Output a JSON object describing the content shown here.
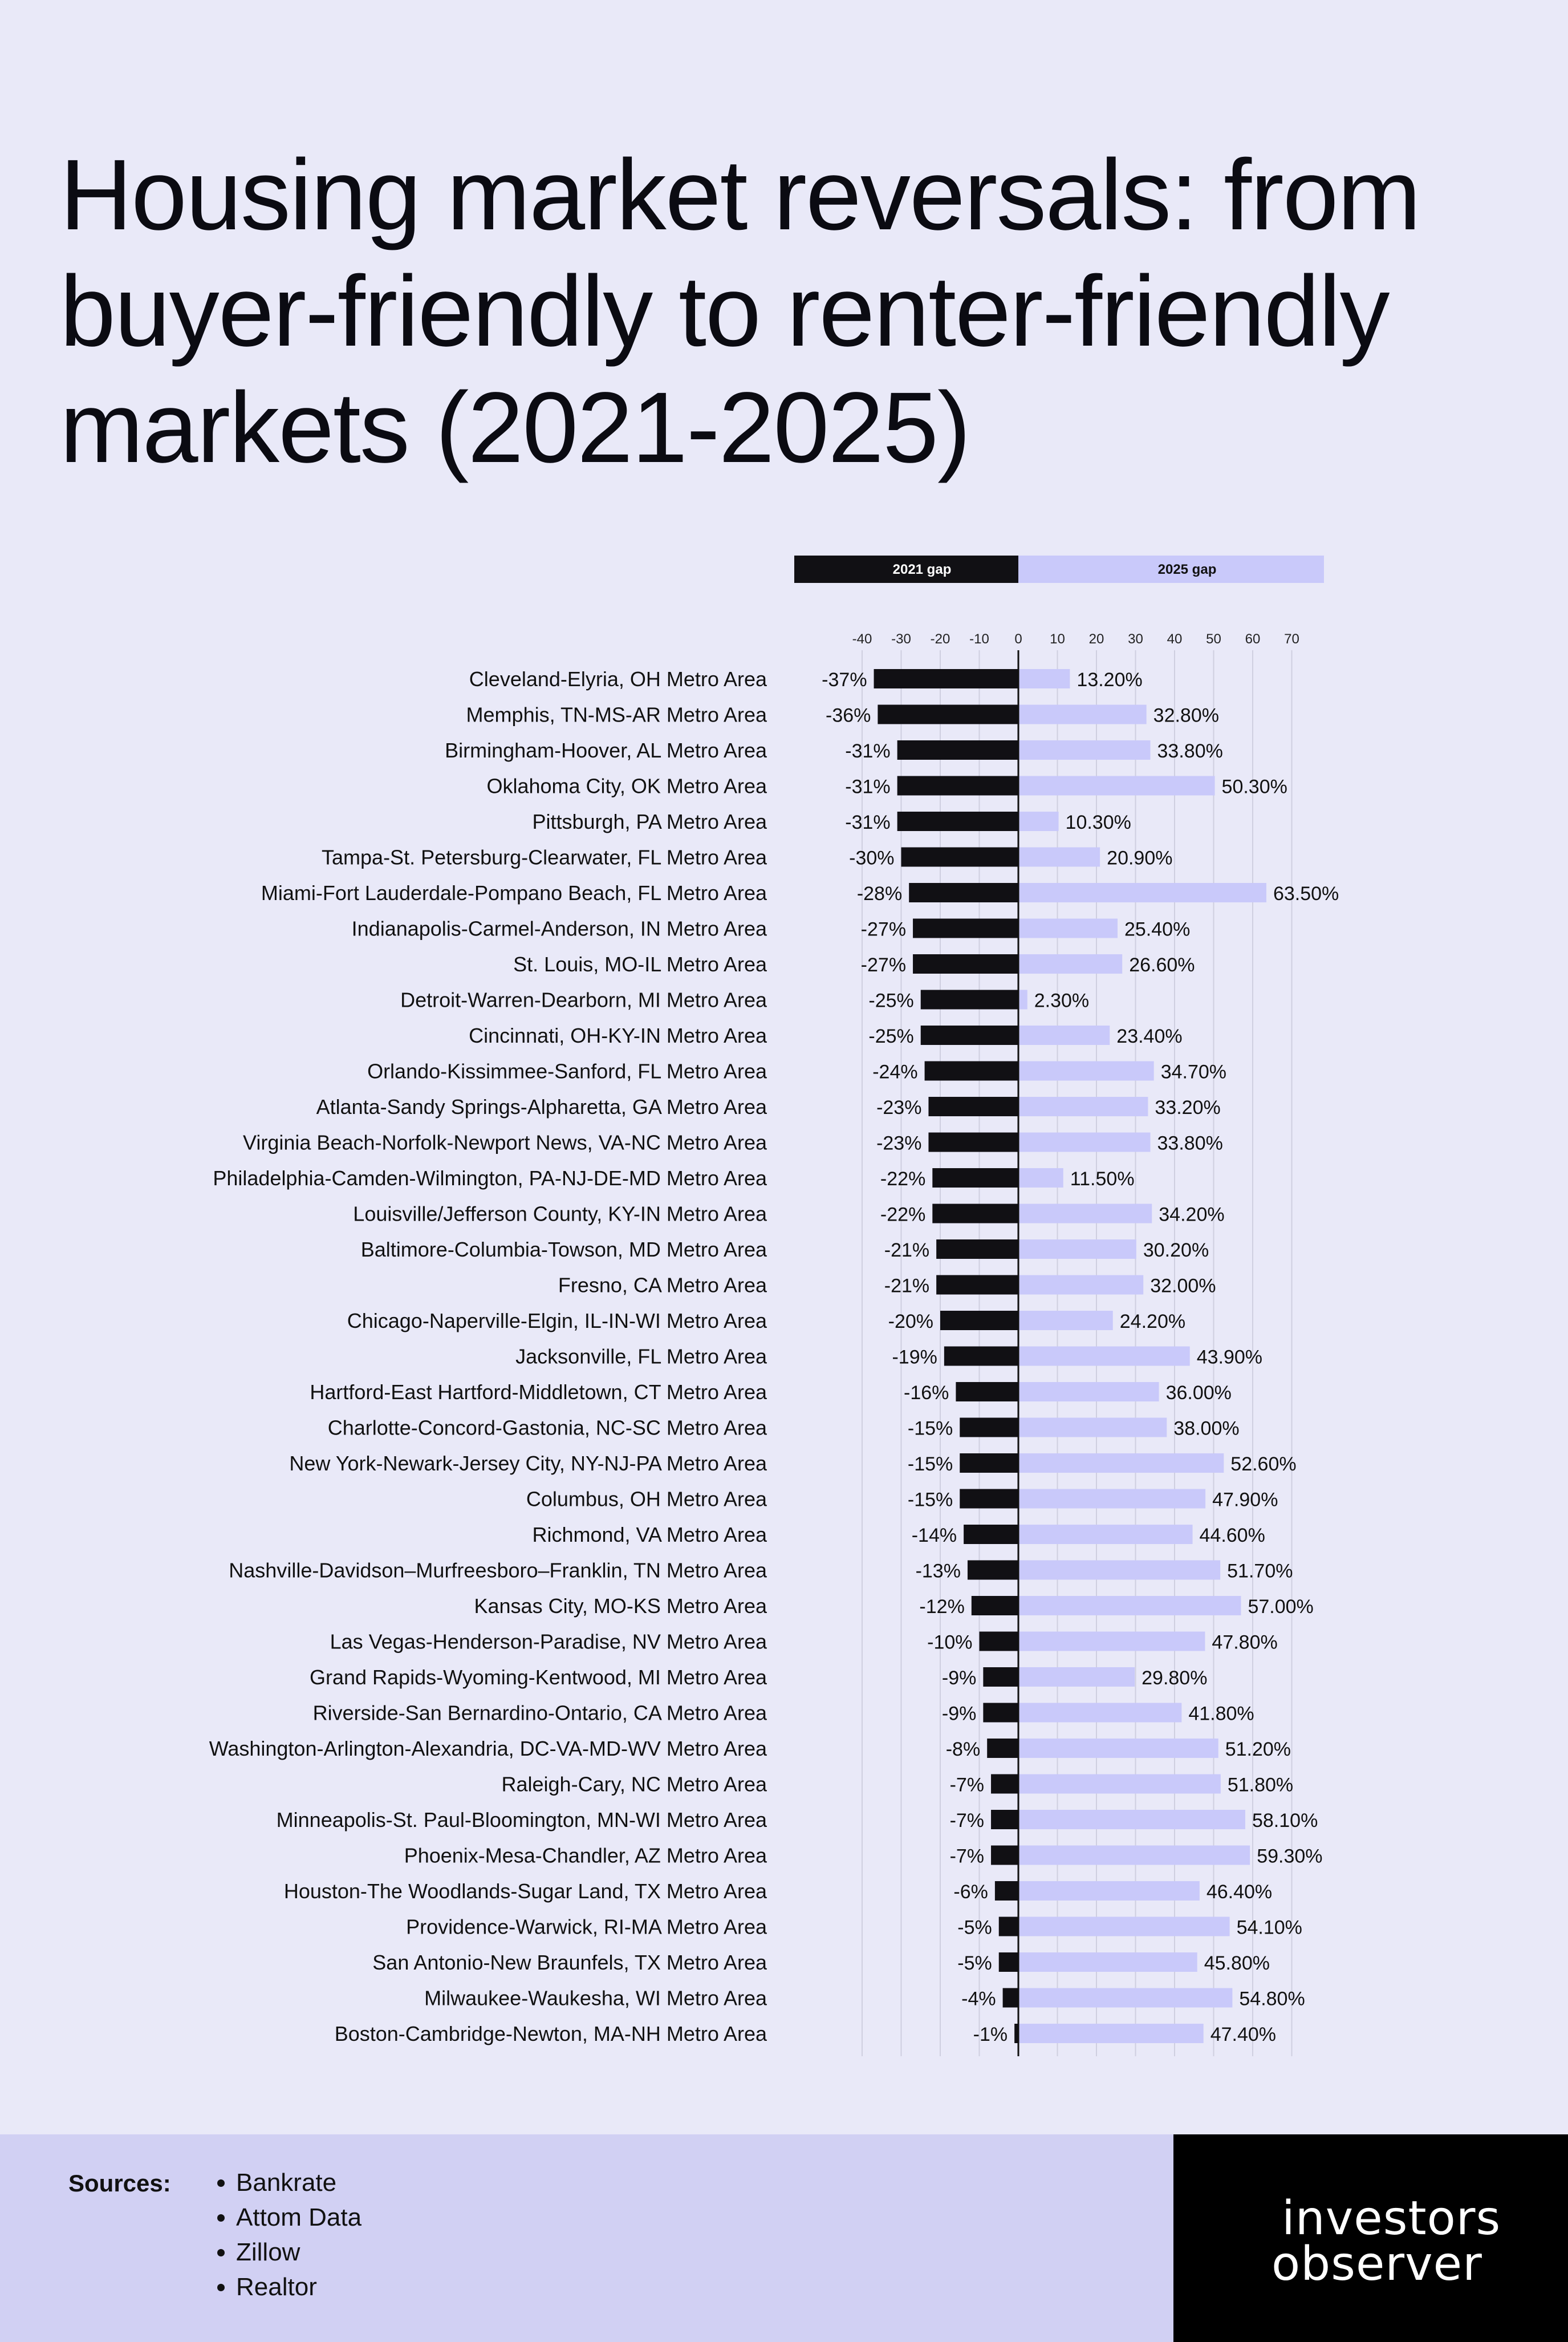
{
  "title": "Housing market reversals: from buyer-friendly to renter-friendly markets (2021-2025)",
  "colors": {
    "background": "#e9e9f8",
    "gap_2021": "#111014",
    "gap_2025": "#c9c9fa",
    "footer": "#d1d0f3",
    "brand_bg": "#000000"
  },
  "chart_data": {
    "type": "bar",
    "orientation": "horizontal",
    "legend": {
      "placement": "top",
      "labels": [
        "2021 gap",
        "2025 gap"
      ]
    },
    "x_ticks": [
      -40,
      -30,
      -20,
      -10,
      0,
      10,
      20,
      30,
      40,
      50,
      60,
      70
    ],
    "xlim": [
      -40,
      70
    ],
    "grid": true,
    "categories": [
      "Cleveland-Elyria, OH Metro Area",
      "Memphis, TN-MS-AR Metro Area",
      "Birmingham-Hoover, AL Metro Area",
      "Oklahoma City, OK Metro Area",
      "Pittsburgh, PA Metro Area",
      "Tampa-St. Petersburg-Clearwater, FL Metro Area",
      "Miami-Fort Lauderdale-Pompano Beach, FL Metro Area",
      "Indianapolis-Carmel-Anderson, IN Metro Area",
      "St. Louis, MO-IL Metro Area",
      "Detroit-Warren-Dearborn, MI Metro Area",
      "Cincinnati, OH-KY-IN Metro Area",
      "Orlando-Kissimmee-Sanford, FL Metro Area",
      "Atlanta-Sandy Springs-Alpharetta, GA Metro Area",
      "Virginia Beach-Norfolk-Newport News, VA-NC Metro Area",
      "Philadelphia-Camden-Wilmington, PA-NJ-DE-MD Metro Area",
      "Louisville/Jefferson County, KY-IN Metro Area",
      "Baltimore-Columbia-Towson, MD Metro Area",
      "Fresno, CA Metro Area",
      "Chicago-Naperville-Elgin, IL-IN-WI Metro Area",
      "Jacksonville, FL Metro Area",
      "Hartford-East Hartford-Middletown, CT Metro Area",
      "Charlotte-Concord-Gastonia, NC-SC Metro Area",
      "New York-Newark-Jersey City, NY-NJ-PA Metro Area",
      "Columbus, OH Metro Area",
      "Richmond, VA Metro Area",
      "Nashville-Davidson–Murfreesboro–Franklin, TN Metro Area",
      "Kansas City, MO-KS Metro Area",
      "Las Vegas-Henderson-Paradise, NV Metro Area",
      "Grand Rapids-Wyoming-Kentwood, MI Metro Area",
      "Riverside-San Bernardino-Ontario, CA Metro Area",
      "Washington-Arlington-Alexandria, DC-VA-MD-WV Metro Area",
      "Raleigh-Cary, NC Metro Area",
      "Minneapolis-St. Paul-Bloomington, MN-WI Metro Area",
      "Phoenix-Mesa-Chandler, AZ Metro Area",
      "Houston-The Woodlands-Sugar Land, TX Metro Area",
      "Providence-Warwick, RI-MA Metro Area",
      "San Antonio-New Braunfels, TX Metro Area",
      "Milwaukee-Waukesha, WI Metro Area",
      "Boston-Cambridge-Newton, MA-NH Metro Area"
    ],
    "series": [
      {
        "name": "2021 gap",
        "values": [
          -37,
          -36,
          -31,
          -31,
          -31,
          -30,
          -28,
          -27,
          -27,
          -25,
          -25,
          -24,
          -23,
          -23,
          -22,
          -22,
          -21,
          -21,
          -20,
          -19,
          -16,
          -15,
          -15,
          -15,
          -14,
          -13,
          -12,
          -10,
          -9,
          -9,
          -8,
          -7,
          -7,
          -7,
          -6,
          -5,
          -5,
          -4,
          -1
        ],
        "labels": [
          "-37%",
          "-36%",
          "-31%",
          "-31%",
          "-31%",
          "-30%",
          "-28%",
          "-27%",
          "-27%",
          "-25%",
          "-25%",
          "-24%",
          "-23%",
          "-23%",
          "-22%",
          "-22%",
          "-21%",
          "-21%",
          "-20%",
          "-19%",
          "-16%",
          "-15%",
          "-15%",
          "-15%",
          "-14%",
          "-13%",
          "-12%",
          "-10%",
          "-9%",
          "-9%",
          "-8%",
          "-7%",
          "-7%",
          "-7%",
          "-6%",
          "-5%",
          "-5%",
          "-4%",
          "-1%"
        ]
      },
      {
        "name": "2025 gap",
        "values": [
          13.2,
          32.8,
          33.8,
          50.3,
          10.3,
          20.9,
          63.5,
          25.4,
          26.6,
          2.3,
          23.4,
          34.7,
          33.2,
          33.8,
          11.5,
          34.2,
          30.2,
          32.0,
          24.2,
          43.9,
          36.0,
          38.0,
          52.6,
          47.9,
          44.6,
          51.7,
          57.0,
          47.8,
          29.8,
          41.8,
          51.2,
          51.8,
          58.1,
          59.3,
          46.4,
          54.1,
          45.8,
          54.8,
          47.4
        ],
        "labels": [
          "13.20%",
          "32.80%",
          "33.80%",
          "50.30%",
          "10.30%",
          "20.90%",
          "63.50%",
          "25.40%",
          "26.60%",
          "2.30%",
          "23.40%",
          "34.70%",
          "33.20%",
          "33.80%",
          "11.50%",
          "34.20%",
          "30.20%",
          "32.00%",
          "24.20%",
          "43.90%",
          "36.00%",
          "38.00%",
          "52.60%",
          "47.90%",
          "44.60%",
          "51.70%",
          "57.00%",
          "47.80%",
          "29.80%",
          "41.80%",
          "51.20%",
          "51.80%",
          "58.10%",
          "59.30%",
          "46.40%",
          "54.10%",
          "45.80%",
          "54.80%",
          "47.40%"
        ]
      }
    ]
  },
  "footer": {
    "sources_label": "Sources:",
    "sources": [
      "Bankrate",
      "Attom Data",
      "Zillow",
      "Realtor"
    ],
    "brand_line1": "investors",
    "brand_line2": "observer"
  }
}
